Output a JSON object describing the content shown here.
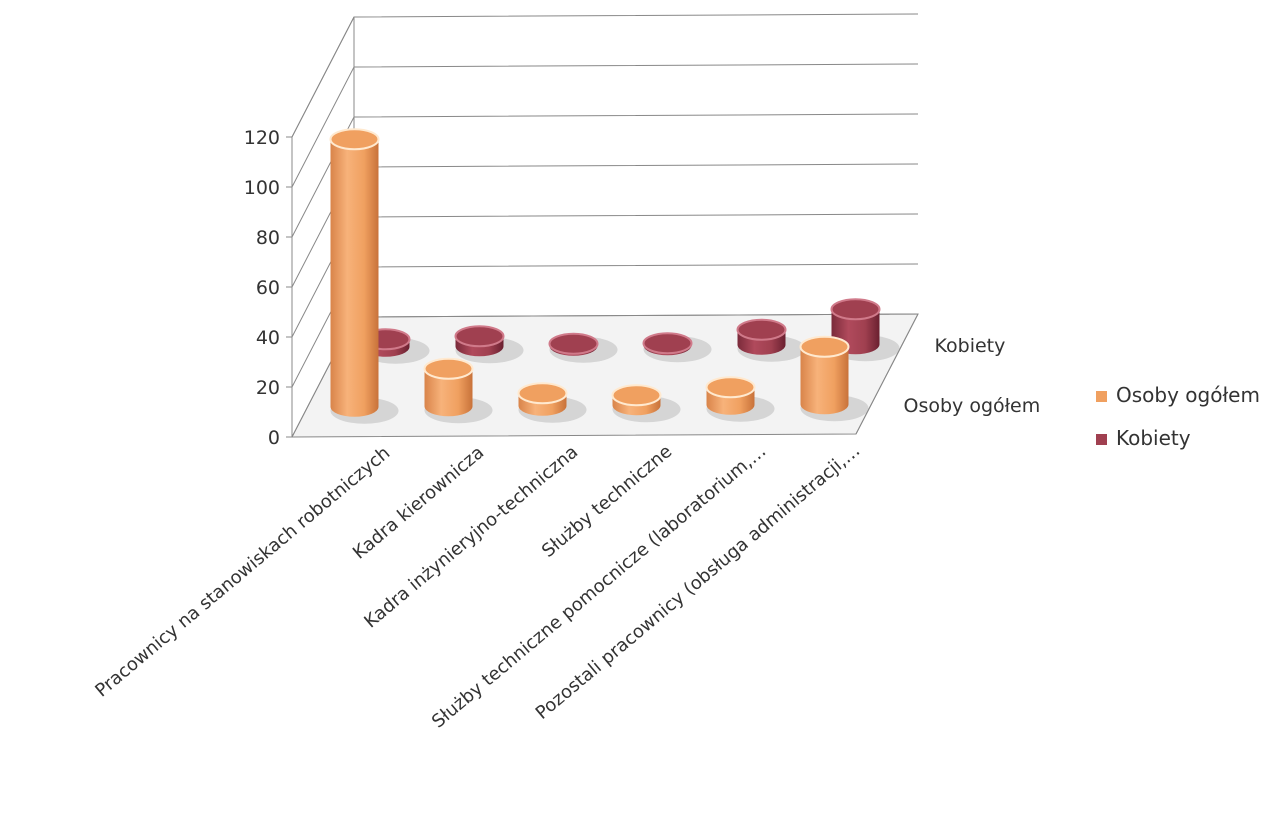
{
  "chart_data": {
    "type": "bar",
    "variant": "3d-cylinder",
    "categories": [
      "Pracownicy na stanowiskach robotniczych",
      "Kadra kierownicza",
      "Kadra inżynieryjno-techniczna",
      "Służby techniczne",
      "Służby techniczne pomocnicze (laboratorium,…",
      "Pozostali pracownicy (obsługa administracji,…"
    ],
    "series": [
      {
        "name": "Osoby ogółem",
        "values": [
          107,
          15,
          5,
          4,
          7,
          23
        ]
      },
      {
        "name": "Kobiety",
        "values": [
          3,
          4,
          0,
          0,
          6,
          14
        ]
      }
    ],
    "yticks": [
      "0",
      "20",
      "40",
      "60",
      "80",
      "100",
      "120"
    ],
    "ylim": [
      0,
      120
    ],
    "depth_labels": [
      "Osoby ogółem",
      "Kobiety"
    ],
    "grid": true,
    "legend_position": "right",
    "colors": {
      "series1": "#f0a060",
      "series1_dark": "#d07a3a",
      "series2": "#a04050",
      "series2_dark": "#6e2232",
      "grid": "#888888"
    }
  }
}
